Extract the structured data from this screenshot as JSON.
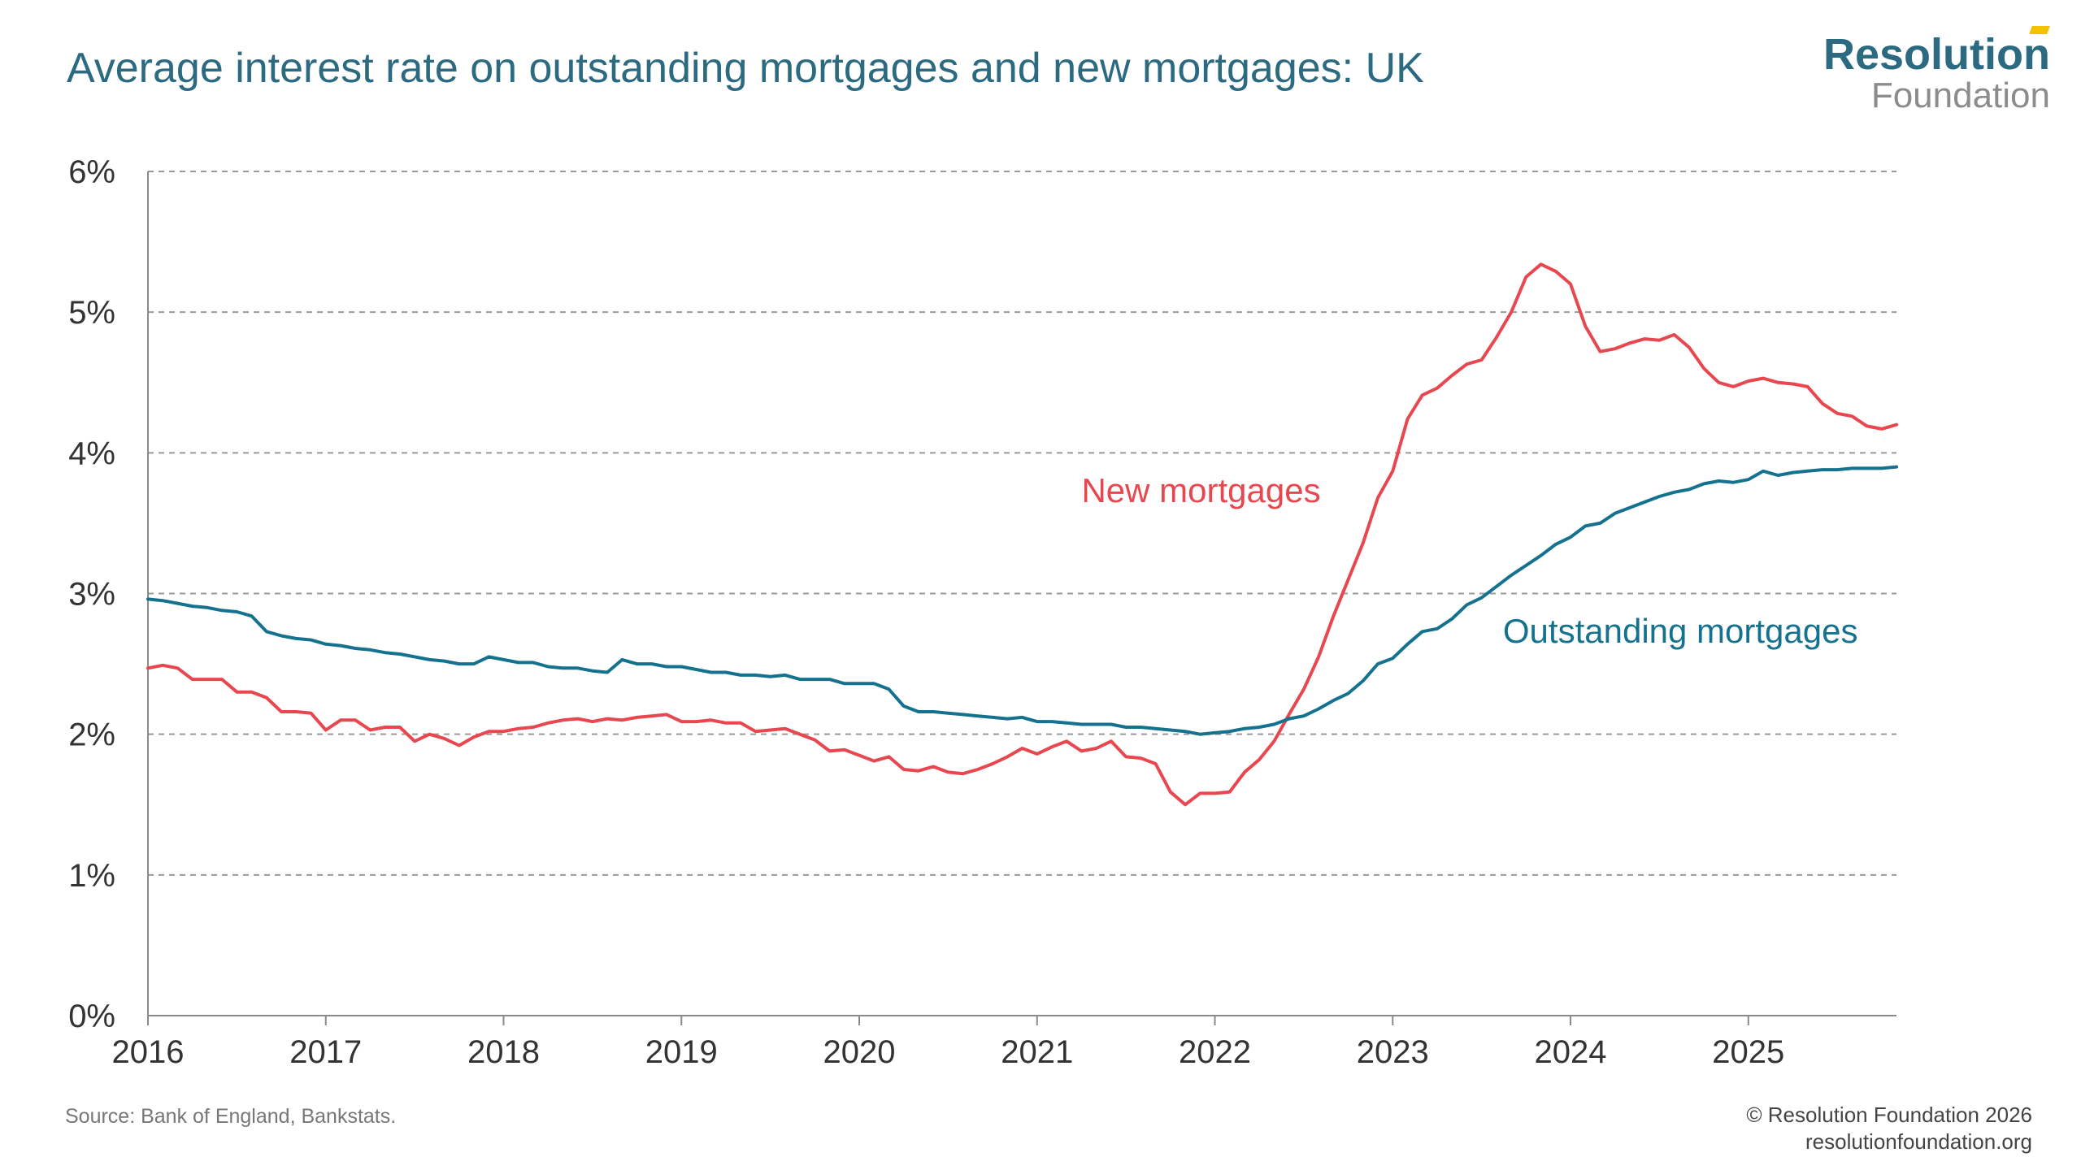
{
  "header": {
    "title": "Average interest rate on outstanding mortgages and new mortgages: UK"
  },
  "logo": {
    "line1": "Resolution",
    "line2": "Foundation"
  },
  "footer": {
    "source": "Source: Bank of England, Bankstats.",
    "copyright": "© Resolution Foundation 2026",
    "url": "resolutionfoundation.org"
  },
  "colors": {
    "new": "#e8474f",
    "outstanding": "#15728f",
    "title": "#2b6a80",
    "grid": "#9a9a9a"
  },
  "chart_data": {
    "type": "line",
    "title": "Average interest rate on outstanding mortgages and new mortgages: UK",
    "xlabel": "",
    "ylabel": "",
    "x_start": 2016.0,
    "x_step_months": 1,
    "xlim": [
      2016.0,
      2025.833
    ],
    "ylim": [
      0,
      6
    ],
    "x_ticks": [
      {
        "value": 2016,
        "label": "2016"
      },
      {
        "value": 2017,
        "label": "2017"
      },
      {
        "value": 2018,
        "label": "2018"
      },
      {
        "value": 2019,
        "label": "2019"
      },
      {
        "value": 2020,
        "label": "2020"
      },
      {
        "value": 2021,
        "label": "2021"
      },
      {
        "value": 2022,
        "label": "2022"
      },
      {
        "value": 2023,
        "label": "2023"
      },
      {
        "value": 2024,
        "label": "2024"
      },
      {
        "value": 2025,
        "label": "2025"
      }
    ],
    "y_ticks": [
      {
        "value": 0,
        "label": "0%"
      },
      {
        "value": 1,
        "label": "1%"
      },
      {
        "value": 2,
        "label": "2%"
      },
      {
        "value": 3,
        "label": "3%"
      },
      {
        "value": 4,
        "label": "4%"
      },
      {
        "value": 5,
        "label": "5%"
      },
      {
        "value": 6,
        "label": "6%"
      }
    ],
    "grid": "horizontal-dashed",
    "series": [
      {
        "name": "New mortgages",
        "label": "New mortgages",
        "label_anchor": {
          "x": 2021.25,
          "y": 3.65
        },
        "values": [
          2.47,
          2.49,
          2.47,
          2.39,
          2.39,
          2.39,
          2.3,
          2.3,
          2.26,
          2.16,
          2.16,
          2.15,
          2.03,
          2.1,
          2.1,
          2.03,
          2.05,
          2.05,
          1.95,
          2.0,
          1.97,
          1.92,
          1.98,
          2.02,
          2.02,
          2.04,
          2.05,
          2.08,
          2.1,
          2.11,
          2.09,
          2.11,
          2.1,
          2.12,
          2.13,
          2.14,
          2.09,
          2.09,
          2.1,
          2.08,
          2.08,
          2.02,
          2.03,
          2.04,
          2.0,
          1.96,
          1.88,
          1.89,
          1.85,
          1.81,
          1.84,
          1.75,
          1.74,
          1.77,
          1.73,
          1.72,
          1.75,
          1.79,
          1.84,
          1.9,
          1.86,
          1.91,
          1.95,
          1.88,
          1.9,
          1.95,
          1.84,
          1.83,
          1.79,
          1.59,
          1.5,
          1.58,
          1.58,
          1.59,
          1.73,
          1.82,
          1.95,
          2.14,
          2.32,
          2.55,
          2.84,
          3.1,
          3.36,
          3.68,
          3.87,
          4.24,
          4.41,
          4.46,
          4.55,
          4.63,
          4.66,
          4.82,
          5.0,
          5.25,
          5.34,
          5.29,
          5.2,
          4.9,
          4.72,
          4.74,
          4.78,
          4.81,
          4.8,
          4.84,
          4.75,
          4.6,
          4.5,
          4.47,
          4.51,
          4.53,
          4.5,
          4.49,
          4.47,
          4.35,
          4.28,
          4.26,
          4.19,
          4.17,
          4.2
        ]
      },
      {
        "name": "Outstanding mortgages",
        "label": "Outstanding mortgages",
        "label_anchor": {
          "x": 2023.62,
          "y": 2.65
        },
        "values": [
          2.96,
          2.95,
          2.93,
          2.91,
          2.9,
          2.88,
          2.87,
          2.84,
          2.73,
          2.7,
          2.68,
          2.67,
          2.64,
          2.63,
          2.61,
          2.6,
          2.58,
          2.57,
          2.55,
          2.53,
          2.52,
          2.5,
          2.5,
          2.55,
          2.53,
          2.51,
          2.51,
          2.48,
          2.47,
          2.47,
          2.45,
          2.44,
          2.53,
          2.5,
          2.5,
          2.48,
          2.48,
          2.46,
          2.44,
          2.44,
          2.42,
          2.42,
          2.41,
          2.42,
          2.39,
          2.39,
          2.39,
          2.36,
          2.36,
          2.36,
          2.32,
          2.2,
          2.16,
          2.16,
          2.15,
          2.14,
          2.13,
          2.12,
          2.11,
          2.12,
          2.09,
          2.09,
          2.08,
          2.07,
          2.07,
          2.07,
          2.05,
          2.05,
          2.04,
          2.03,
          2.02,
          2.0,
          2.01,
          2.02,
          2.04,
          2.05,
          2.07,
          2.11,
          2.13,
          2.18,
          2.24,
          2.29,
          2.38,
          2.5,
          2.54,
          2.64,
          2.73,
          2.75,
          2.82,
          2.92,
          2.97,
          3.05,
          3.13,
          3.2,
          3.27,
          3.35,
          3.4,
          3.48,
          3.5,
          3.57,
          3.61,
          3.65,
          3.69,
          3.72,
          3.74,
          3.78,
          3.8,
          3.79,
          3.81,
          3.87,
          3.84,
          3.86,
          3.87,
          3.88,
          3.88,
          3.89,
          3.89,
          3.89,
          3.9
        ]
      }
    ]
  }
}
